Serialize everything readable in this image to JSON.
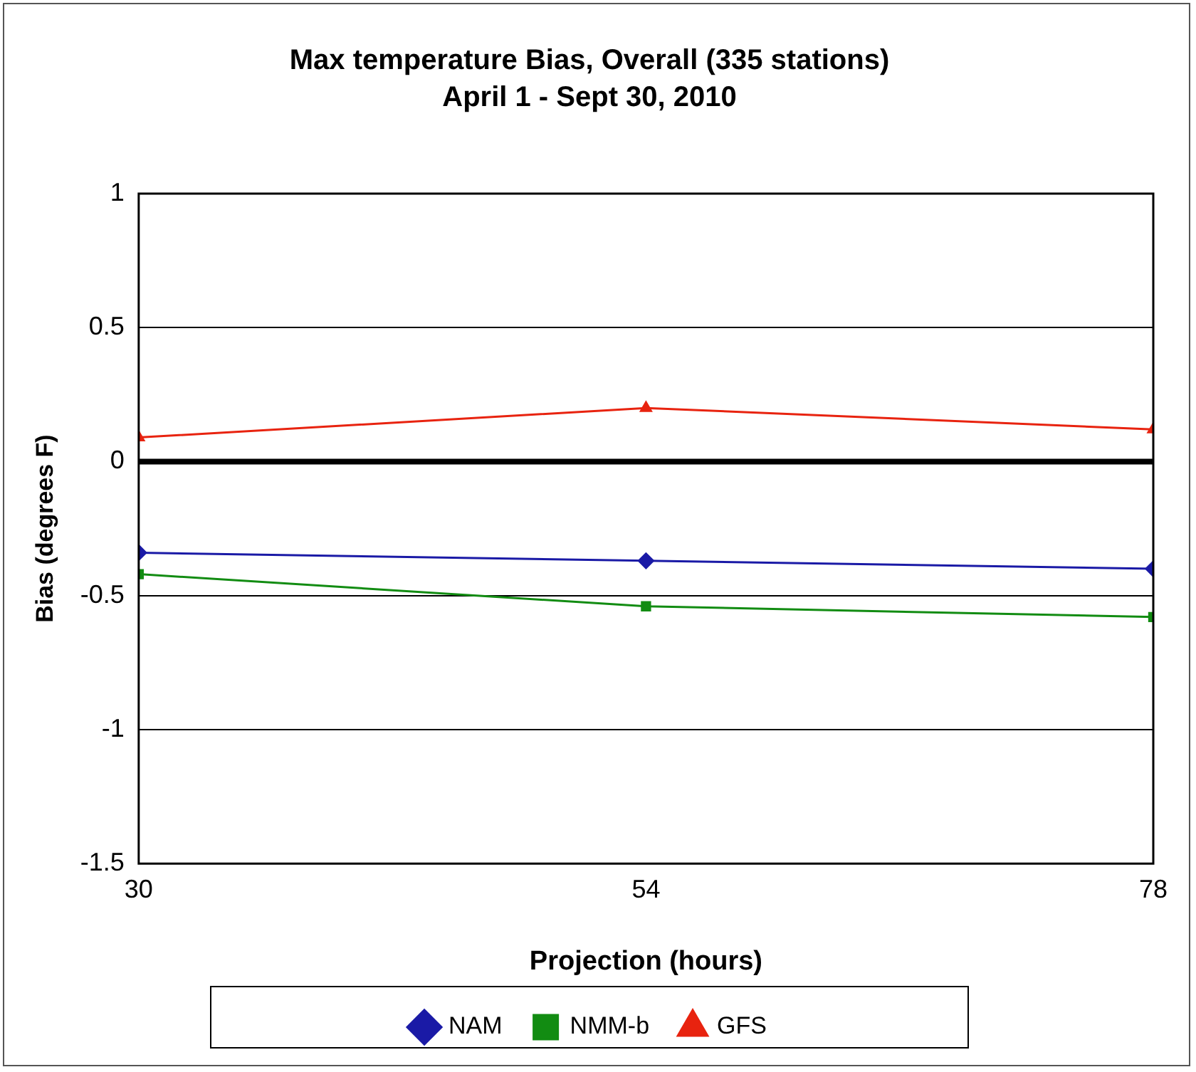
{
  "chart_data": {
    "type": "line",
    "title": "Max temperature Bias, Overall (335 stations)",
    "subtitle": "April 1 - Sept 30, 2010",
    "xlabel": "Projection (hours)",
    "ylabel": "Bias (degrees F)",
    "x": [
      30,
      54,
      78
    ],
    "xlim": [
      30,
      78
    ],
    "xticks": [
      30,
      54,
      78
    ],
    "ylim": [
      -1.5,
      1
    ],
    "yticks": [
      -1.5,
      -1,
      -0.5,
      0,
      0.5,
      1
    ],
    "grid": "y",
    "legend": "bottom",
    "ref_lines": [
      {
        "axis": "y",
        "value": 0,
        "color": "#000000"
      }
    ],
    "series": [
      {
        "name": "NAM",
        "color": "#1a1aa6",
        "marker": "diamond",
        "values": [
          -0.34,
          -0.37,
          -0.4
        ]
      },
      {
        "name": "NMM-b",
        "color": "#128c12",
        "marker": "square",
        "values": [
          -0.42,
          -0.54,
          -0.58
        ]
      },
      {
        "name": "GFS",
        "color": "#e8230f",
        "marker": "triangle",
        "values": [
          0.09,
          0.2,
          0.12
        ]
      }
    ]
  }
}
